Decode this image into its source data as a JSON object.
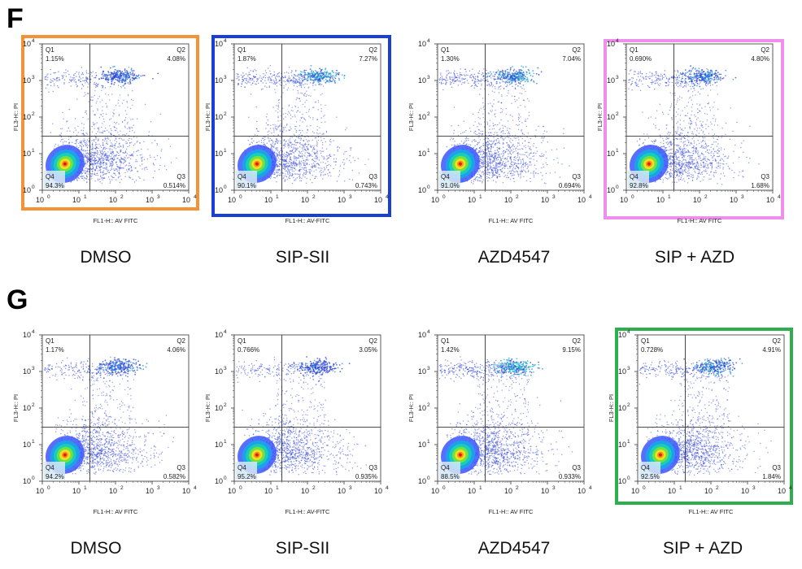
{
  "figure": {
    "section_f_label": "F",
    "section_g_label": "G",
    "condition_labels": [
      "DMSO",
      "SIP-SII",
      "AZD4547",
      "SIP + AZD"
    ],
    "highlight_colors": {
      "F_DMSO": "#f39236",
      "F_SIP-SII": "#1a3fd6",
      "F_SIP_AZD": "#ee8fec",
      "G_SIP_AZD": "#2fae4e"
    }
  },
  "chart_data": [
    {
      "type": "scatter",
      "panel": "F",
      "condition": "DMSO",
      "xlabel": "FL1-H:: AV FITC",
      "ylabel": "FL3-H:: PI",
      "xscale": "log",
      "yscale": "log",
      "xlim": [
        1,
        10000
      ],
      "ylim": [
        1,
        10000
      ],
      "x_ticks": [
        "10^0",
        "10^1",
        "10^2",
        "10^3",
        "10^4"
      ],
      "y_ticks": [
        "10^0",
        "10^1",
        "10^2",
        "10^3",
        "10^4"
      ],
      "quadrant_gate": {
        "x": 20,
        "y": 30
      },
      "quadrants": [
        {
          "name": "Q1",
          "percent": "1.15%"
        },
        {
          "name": "Q2",
          "percent": "4.08%"
        },
        {
          "name": "Q3",
          "percent": "0.514%"
        },
        {
          "name": "Q4",
          "percent": "94.3%"
        }
      ],
      "density": "dense cluster of live cells in Q4, streak of late apoptotic cells in Q2",
      "highlight": "orange"
    },
    {
      "type": "scatter",
      "panel": "F",
      "condition": "SIP-SII",
      "xlabel": "FL1-H:: AV-FITC",
      "ylabel": "FL3-H:: PI",
      "xscale": "log",
      "yscale": "log",
      "xlim": [
        1,
        10000
      ],
      "ylim": [
        1,
        10000
      ],
      "x_ticks": [
        "10^0",
        "10^1",
        "10^2",
        "10^3",
        "10^4"
      ],
      "y_ticks": [
        "10^0",
        "10^1",
        "10^2",
        "10^3",
        "10^4"
      ],
      "quadrant_gate": {
        "x": 20,
        "y": 30
      },
      "quadrants": [
        {
          "name": "Q1",
          "percent": "1.87%"
        },
        {
          "name": "Q2",
          "percent": "7.27%"
        },
        {
          "name": "Q3",
          "percent": "0.743%"
        },
        {
          "name": "Q4",
          "percent": "90.1%"
        }
      ],
      "highlight": "blue"
    },
    {
      "type": "scatter",
      "panel": "F",
      "condition": "AZD4547",
      "xlabel": "FL1-H:: AV FITC",
      "ylabel": "FL3-H:: PI",
      "xscale": "log",
      "yscale": "log",
      "xlim": [
        1,
        10000
      ],
      "ylim": [
        1,
        10000
      ],
      "x_ticks": [
        "10^0",
        "10^1",
        "10^2",
        "10^3",
        "10^4"
      ],
      "y_ticks": [
        "10^0",
        "10^1",
        "10^2",
        "10^3",
        "10^4"
      ],
      "quadrant_gate": {
        "x": 20,
        "y": 30
      },
      "quadrants": [
        {
          "name": "Q1",
          "percent": "1.30%"
        },
        {
          "name": "Q2",
          "percent": "7.04%"
        },
        {
          "name": "Q3",
          "percent": "0.694%"
        },
        {
          "name": "Q4",
          "percent": "91.0%"
        }
      ]
    },
    {
      "type": "scatter",
      "panel": "F",
      "condition": "SIP + AZD",
      "xlabel": "FL1-H:: AV FITC",
      "ylabel": "FL3-H:: PI",
      "xscale": "log",
      "yscale": "log",
      "xlim": [
        1,
        10000
      ],
      "ylim": [
        1,
        10000
      ],
      "x_ticks": [
        "10^0",
        "10^1",
        "10^2",
        "10^3",
        "10^4"
      ],
      "y_ticks": [
        "10^0",
        "10^1",
        "10^2",
        "10^3",
        "10^4"
      ],
      "quadrant_gate": {
        "x": 20,
        "y": 30
      },
      "quadrants": [
        {
          "name": "Q1",
          "percent": "0.690%"
        },
        {
          "name": "Q2",
          "percent": "4.80%"
        },
        {
          "name": "Q3",
          "percent": "1.68%"
        },
        {
          "name": "Q4",
          "percent": "92.8%"
        }
      ],
      "highlight": "pink"
    },
    {
      "type": "scatter",
      "panel": "G",
      "condition": "DMSO",
      "xlabel": "FL1-H:: AV FITC",
      "ylabel": "FL3-H:: PI",
      "xscale": "log",
      "yscale": "log",
      "xlim": [
        1,
        10000
      ],
      "ylim": [
        1,
        10000
      ],
      "x_ticks": [
        "10^0",
        "10^1",
        "10^2",
        "10^3",
        "10^4"
      ],
      "y_ticks": [
        "10^0",
        "10^1",
        "10^2",
        "10^3",
        "10^4"
      ],
      "quadrant_gate": {
        "x": 20,
        "y": 30
      },
      "quadrants": [
        {
          "name": "Q1",
          "percent": "1.17%"
        },
        {
          "name": "Q2",
          "percent": "4.06%"
        },
        {
          "name": "Q3",
          "percent": "0.582%"
        },
        {
          "name": "Q4",
          "percent": "94.2%"
        }
      ]
    },
    {
      "type": "scatter",
      "panel": "G",
      "condition": "SIP-SII",
      "xlabel": "FL1-H:: AV-FITC",
      "ylabel": "FL3-H:: PI",
      "xscale": "log",
      "yscale": "log",
      "xlim": [
        1,
        10000
      ],
      "ylim": [
        1,
        10000
      ],
      "x_ticks": [
        "10^0",
        "10^1",
        "10^2",
        "10^3",
        "10^4"
      ],
      "y_ticks": [
        "10^0",
        "10^1",
        "10^2",
        "10^3",
        "10^4"
      ],
      "quadrant_gate": {
        "x": 20,
        "y": 30
      },
      "quadrants": [
        {
          "name": "Q1",
          "percent": "0.766%"
        },
        {
          "name": "Q2",
          "percent": "3.05%"
        },
        {
          "name": "Q3",
          "percent": "0.935%"
        },
        {
          "name": "Q4",
          "percent": "95.2%"
        }
      ]
    },
    {
      "type": "scatter",
      "panel": "G",
      "condition": "AZD4547",
      "xlabel": "FL1-H:: AV FITC",
      "ylabel": "FL3-H:: PI",
      "xscale": "log",
      "yscale": "log",
      "xlim": [
        1,
        10000
      ],
      "ylim": [
        1,
        10000
      ],
      "x_ticks": [
        "10^0",
        "10^1",
        "10^2",
        "10^3",
        "10^4"
      ],
      "y_ticks": [
        "10^0",
        "10^1",
        "10^2",
        "10^3",
        "10^4"
      ],
      "quadrant_gate": {
        "x": 20,
        "y": 30
      },
      "quadrants": [
        {
          "name": "Q1",
          "percent": "1.42%"
        },
        {
          "name": "Q2",
          "percent": "9.15%"
        },
        {
          "name": "Q3",
          "percent": "0.933%"
        },
        {
          "name": "Q4",
          "percent": "88.5%"
        }
      ]
    },
    {
      "type": "scatter",
      "panel": "G",
      "condition": "SIP + AZD",
      "xlabel": "FL1-H:: AV FITC",
      "ylabel": "FL3-H:: PI",
      "xscale": "log",
      "yscale": "log",
      "xlim": [
        1,
        10000
      ],
      "ylim": [
        1,
        10000
      ],
      "x_ticks": [
        "10^0",
        "10^1",
        "10^2",
        "10^3",
        "10^4"
      ],
      "y_ticks": [
        "10^0",
        "10^1",
        "10^2",
        "10^3",
        "10^4"
      ],
      "quadrant_gate": {
        "x": 20,
        "y": 30
      },
      "quadrants": [
        {
          "name": "Q1",
          "percent": "0.728%"
        },
        {
          "name": "Q2",
          "percent": "4.91%"
        },
        {
          "name": "Q3",
          "percent": "1.84%"
        },
        {
          "name": "Q4",
          "percent": "92.5%"
        }
      ],
      "highlight": "green"
    }
  ]
}
